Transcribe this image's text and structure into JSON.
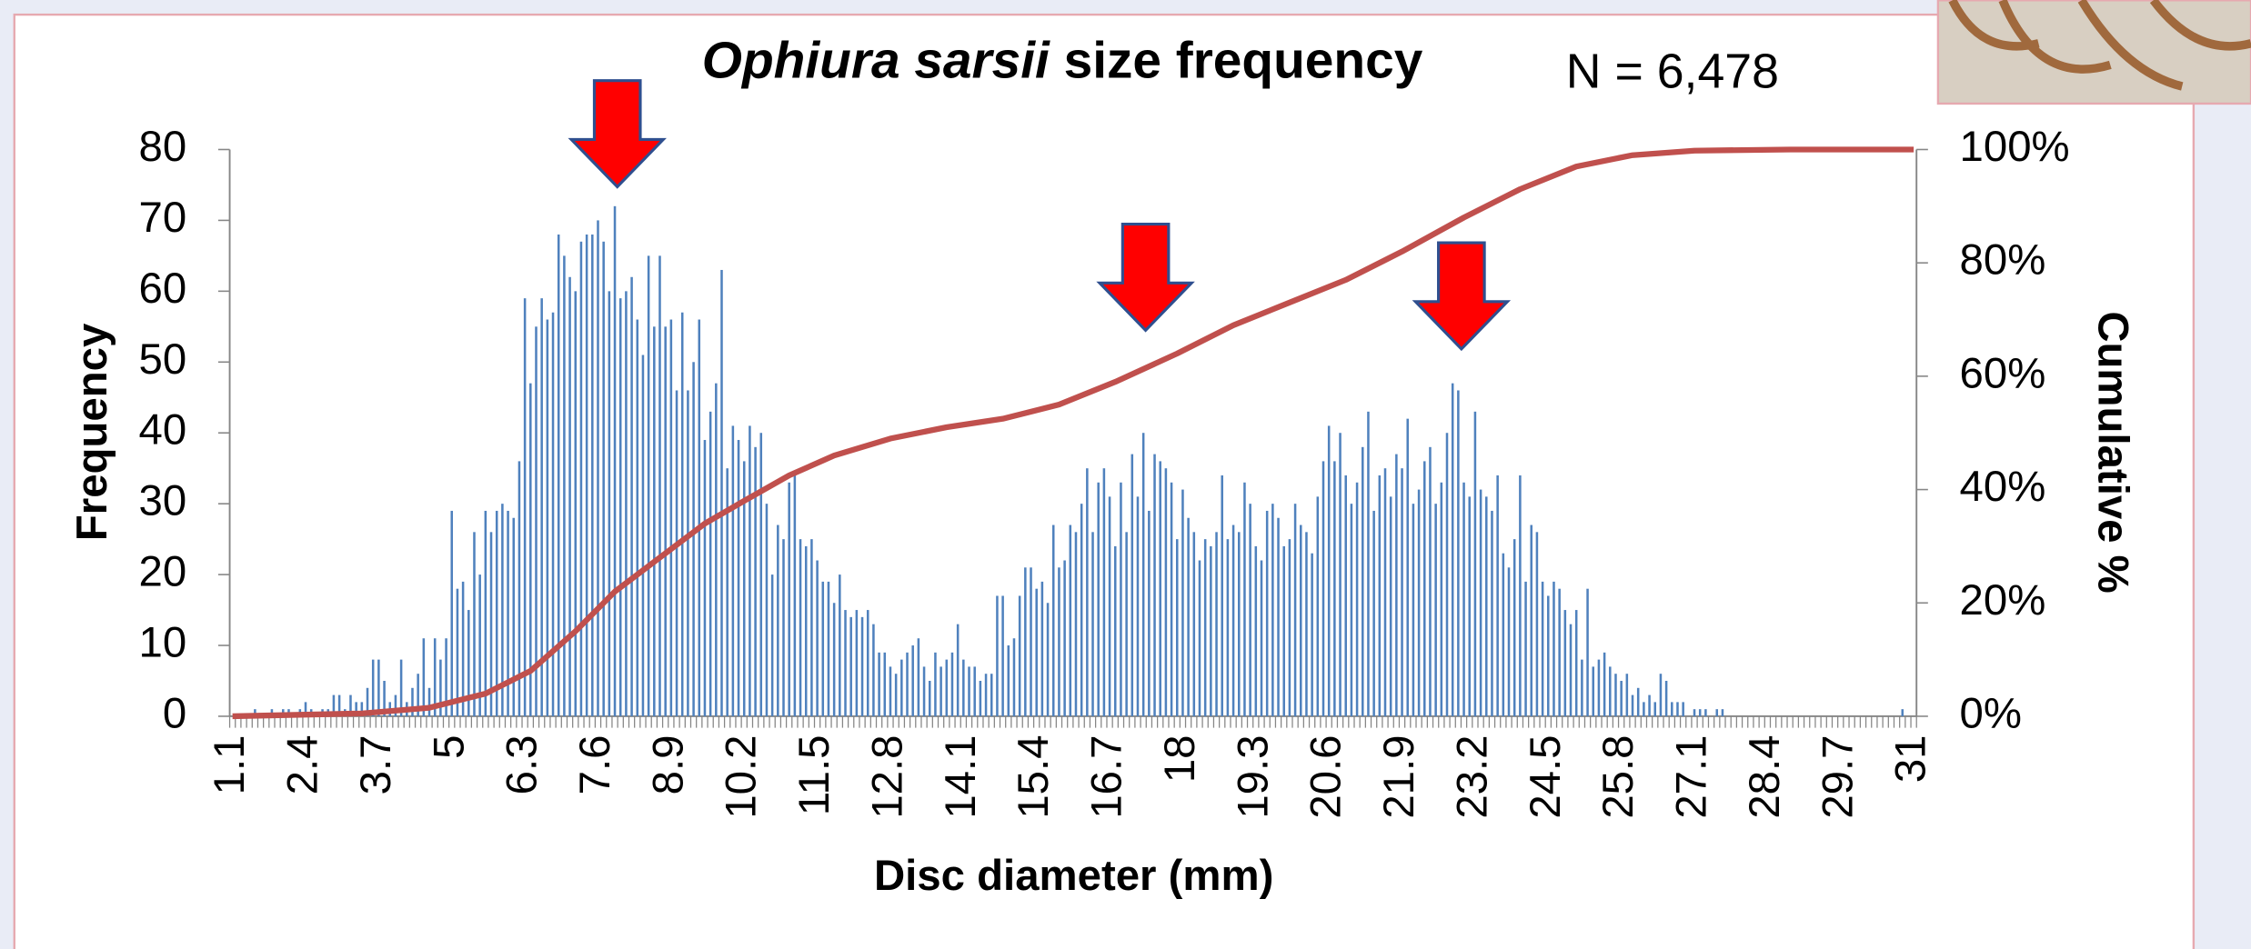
{
  "chart_data": {
    "type": "bar",
    "title_italic": "Ophiura sarsii",
    "title": "size frequency",
    "annotation": "N = 6,478",
    "xlabel": "Disc diameter (mm)",
    "ylabel": "Frequency",
    "y2label": "Cumulative  %",
    "categories": [
      "1.1",
      null,
      null,
      null,
      null,
      null,
      null,
      null,
      null,
      null,
      null,
      null,
      null,
      "2.4",
      null,
      null,
      null,
      null,
      null,
      null,
      null,
      null,
      null,
      null,
      null,
      null,
      "3.7",
      null,
      null,
      null,
      null,
      null,
      null,
      null,
      null,
      null,
      null,
      null,
      null,
      "5",
      null,
      null,
      null,
      null,
      null,
      null,
      null,
      null,
      null,
      null,
      null,
      null,
      "6.3",
      null,
      null,
      null,
      null,
      null,
      null,
      null,
      null,
      null,
      null,
      null,
      null,
      "7.6",
      null,
      null,
      null,
      null,
      null,
      null,
      null,
      null,
      null,
      null,
      null,
      null,
      "8.9",
      null,
      null,
      null,
      null,
      null,
      null,
      null,
      null,
      null,
      null,
      null,
      null,
      "10.2",
      null,
      null,
      null,
      null,
      null,
      null,
      null,
      null,
      null,
      null,
      null,
      null,
      "11.5",
      null,
      null,
      null,
      null,
      null,
      null,
      null,
      null,
      null,
      null,
      null,
      null,
      "12.8",
      null,
      null,
      null,
      null,
      null,
      null,
      null,
      null,
      null,
      null,
      null,
      null,
      "14.1",
      null,
      null,
      null,
      null,
      null,
      null,
      null,
      null,
      null,
      null,
      null,
      null,
      "15.4",
      null,
      null,
      null,
      null,
      null,
      null,
      null,
      null,
      null,
      null,
      null,
      null,
      "16.7",
      null,
      null,
      null,
      null,
      null,
      null,
      null,
      null,
      null,
      null,
      null,
      null,
      "18",
      null,
      null,
      null,
      null,
      null,
      null,
      null,
      null,
      null,
      null,
      null,
      null,
      "19.3",
      null,
      null,
      null,
      null,
      null,
      null,
      null,
      null,
      null,
      null,
      null,
      null,
      "20.6",
      null,
      null,
      null,
      null,
      null,
      null,
      null,
      null,
      null,
      null,
      null,
      null,
      "21.9",
      null,
      null,
      null,
      null,
      null,
      null,
      null,
      null,
      null,
      null,
      null,
      null,
      "23.2",
      null,
      null,
      null,
      null,
      null,
      null,
      null,
      null,
      null,
      null,
      null,
      null,
      "24.5",
      null,
      null,
      null,
      null,
      null,
      null,
      null,
      null,
      null,
      null,
      null,
      null,
      "25.8",
      null,
      null,
      null,
      null,
      null,
      null,
      null,
      null,
      null,
      null,
      null,
      null,
      "27.1",
      null,
      null,
      null,
      null,
      null,
      null,
      null,
      null,
      null,
      null,
      null,
      null,
      "28.4",
      null,
      null,
      null,
      null,
      null,
      null,
      null,
      null,
      null,
      null,
      null,
      null,
      "29.7",
      null,
      null,
      null,
      null,
      null,
      null,
      null,
      null,
      null,
      null,
      null,
      null,
      "31"
    ],
    "xlim": [
      1.1,
      31
    ],
    "ylim": [
      0,
      80
    ],
    "yticks": [
      0,
      10,
      20,
      30,
      40,
      50,
      60,
      70,
      80
    ],
    "y2lim": [
      0,
      100
    ],
    "y2ticks": [
      {
        "value": 0,
        "label": "0%"
      },
      {
        "value": 20,
        "label": "20%"
      },
      {
        "value": 40,
        "label": "40%"
      },
      {
        "value": 60,
        "label": "60%"
      },
      {
        "value": 80,
        "label": "80%"
      },
      {
        "value": 100,
        "label": "100%"
      }
    ],
    "series": [
      {
        "type": "bar",
        "color": "#4f81bd",
        "values": [
          0,
          0,
          0,
          0,
          1,
          0,
          0,
          1,
          0,
          1,
          1,
          0,
          1,
          2,
          1,
          0,
          1,
          1,
          3,
          3,
          1,
          3,
          2,
          2,
          4,
          8,
          8,
          5,
          2,
          3,
          8,
          2,
          4,
          6,
          11,
          4,
          11,
          8,
          11,
          29,
          18,
          19,
          15,
          26,
          20,
          29,
          26,
          29,
          30,
          29,
          28,
          36,
          59,
          47,
          55,
          59,
          56,
          57,
          68,
          65,
          62,
          60,
          67,
          68,
          68,
          70,
          67,
          60,
          72,
          59,
          60,
          62,
          56,
          51,
          65,
          55,
          65,
          55,
          56,
          46,
          57,
          46,
          50,
          56,
          39,
          43,
          47,
          63,
          35,
          41,
          39,
          36,
          41,
          38,
          40,
          30,
          20,
          27,
          25,
          33,
          34,
          25,
          24,
          25,
          22,
          19,
          19,
          16,
          20,
          15,
          14,
          15,
          14,
          15,
          13,
          9,
          9,
          7,
          6,
          8,
          9,
          10,
          11,
          7,
          5,
          9,
          7,
          8,
          9,
          13,
          8,
          7,
          7,
          5,
          6,
          6,
          17,
          17,
          10,
          11,
          17,
          21,
          21,
          18,
          19,
          16,
          27,
          21,
          22,
          27,
          26,
          30,
          35,
          26,
          33,
          35,
          31,
          24,
          33,
          26,
          37,
          31,
          40,
          29,
          37,
          36,
          35,
          33,
          25,
          32,
          28,
          26,
          22,
          25,
          24,
          26,
          34,
          25,
          27,
          26,
          33,
          30,
          24,
          22,
          29,
          30,
          28,
          24,
          25,
          30,
          27,
          26,
          23,
          31,
          36,
          41,
          36,
          40,
          34,
          30,
          33,
          38,
          43,
          29,
          34,
          35,
          31,
          37,
          35,
          42,
          30,
          32,
          36,
          38,
          30,
          33,
          40,
          47,
          46,
          33,
          31,
          43,
          32,
          31,
          29,
          34,
          23,
          21,
          25,
          34,
          19,
          27,
          26,
          19,
          17,
          19,
          18,
          15,
          13,
          15,
          8,
          18,
          7,
          8,
          9,
          7,
          6,
          5,
          6,
          3,
          4,
          2,
          3,
          2,
          6,
          5,
          2,
          2,
          2,
          0,
          1,
          1,
          1,
          0,
          1,
          1,
          0,
          0,
          0,
          0,
          0,
          0,
          0,
          0,
          0,
          0,
          0,
          0,
          0,
          0,
          0,
          0,
          0,
          0,
          0,
          0,
          0,
          0,
          0,
          0,
          0,
          0,
          0,
          0,
          0,
          0,
          0,
          1,
          0,
          0
        ]
      },
      {
        "type": "line",
        "axis": "y2",
        "color": "#c0504d",
        "x": [
          1.1,
          3.4,
          4.6,
          5.6,
          6.4,
          7.2,
          7.9,
          8.7,
          9.5,
          10.2,
          11,
          11.8,
          12.8,
          13.8,
          14.8,
          15.8,
          16.8,
          17.9,
          18.9,
          19.9,
          20.9,
          21.9,
          23,
          24,
          25,
          26,
          27.1,
          28.8,
          31
        ],
        "values": [
          0,
          0.5,
          1.5,
          4,
          8,
          15,
          22,
          28,
          34,
          38,
          42.5,
          46,
          49,
          51,
          52.5,
          55,
          59,
          64,
          69,
          73,
          77,
          82,
          88,
          93,
          97,
          99,
          99.8,
          100,
          100
        ]
      }
    ]
  }
}
